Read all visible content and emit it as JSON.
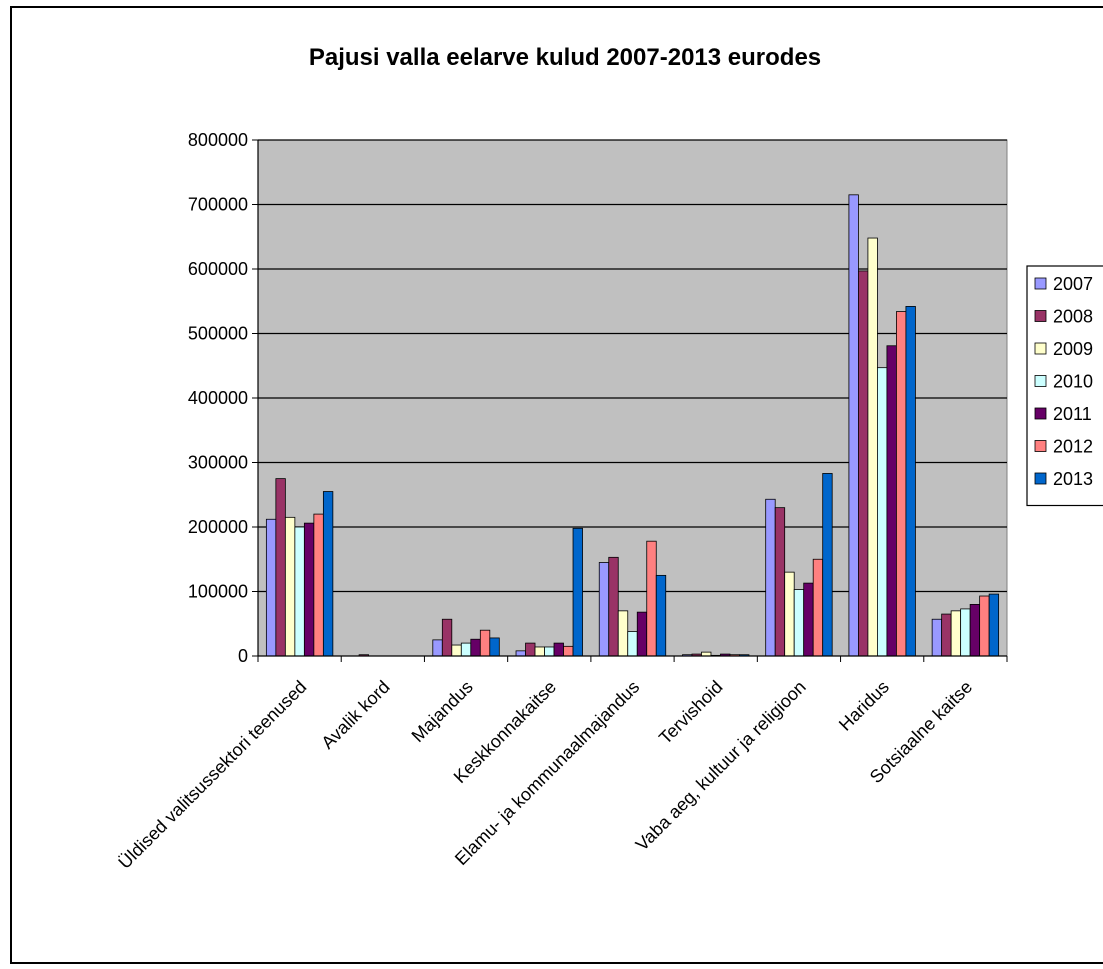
{
  "chart_data": {
    "type": "bar",
    "title": "Pajusi valla eelarve kulud 2007-2013 eurodes",
    "xlabel": "",
    "ylabel": "",
    "ylim": [
      0,
      800000
    ],
    "yticks": [
      0,
      100000,
      200000,
      300000,
      400000,
      500000,
      600000,
      700000,
      800000
    ],
    "grid": true,
    "legend_position": "right",
    "categories": [
      "Üldised valitsussektori teenused",
      "Avalik kord",
      "Majandus",
      "Keskkonnakaitse",
      "Elamu- ja kommunaalmajandus",
      "Tervishoid",
      "Vaba aeg, kultuur ja religioon",
      "Haridus",
      "Sotsiaalne kaitse"
    ],
    "series": [
      {
        "name": "2007",
        "color": "#9999ff",
        "values": [
          212000,
          0,
          25000,
          8000,
          145000,
          2000,
          243000,
          715000,
          57000
        ]
      },
      {
        "name": "2008",
        "color": "#993366",
        "values": [
          275000,
          2000,
          57000,
          20000,
          153000,
          3000,
          230000,
          597000,
          65000
        ]
      },
      {
        "name": "2009",
        "color": "#ffffcc",
        "values": [
          215000,
          0,
          17000,
          14000,
          70000,
          6000,
          130000,
          648000,
          70000
        ]
      },
      {
        "name": "2010",
        "color": "#ccffff",
        "values": [
          200000,
          0,
          20000,
          14000,
          38000,
          1000,
          103000,
          447000,
          73000
        ]
      },
      {
        "name": "2011",
        "color": "#660066",
        "values": [
          206000,
          0,
          26000,
          20000,
          68000,
          3000,
          113000,
          481000,
          80000
        ]
      },
      {
        "name": "2012",
        "color": "#ff8080",
        "values": [
          220000,
          0,
          40000,
          15000,
          178000,
          2000,
          150000,
          534000,
          93000
        ]
      },
      {
        "name": "2013",
        "color": "#0066cc",
        "values": [
          255000,
          0,
          28000,
          198000,
          125000,
          2000,
          283000,
          542000,
          96000
        ]
      }
    ]
  }
}
